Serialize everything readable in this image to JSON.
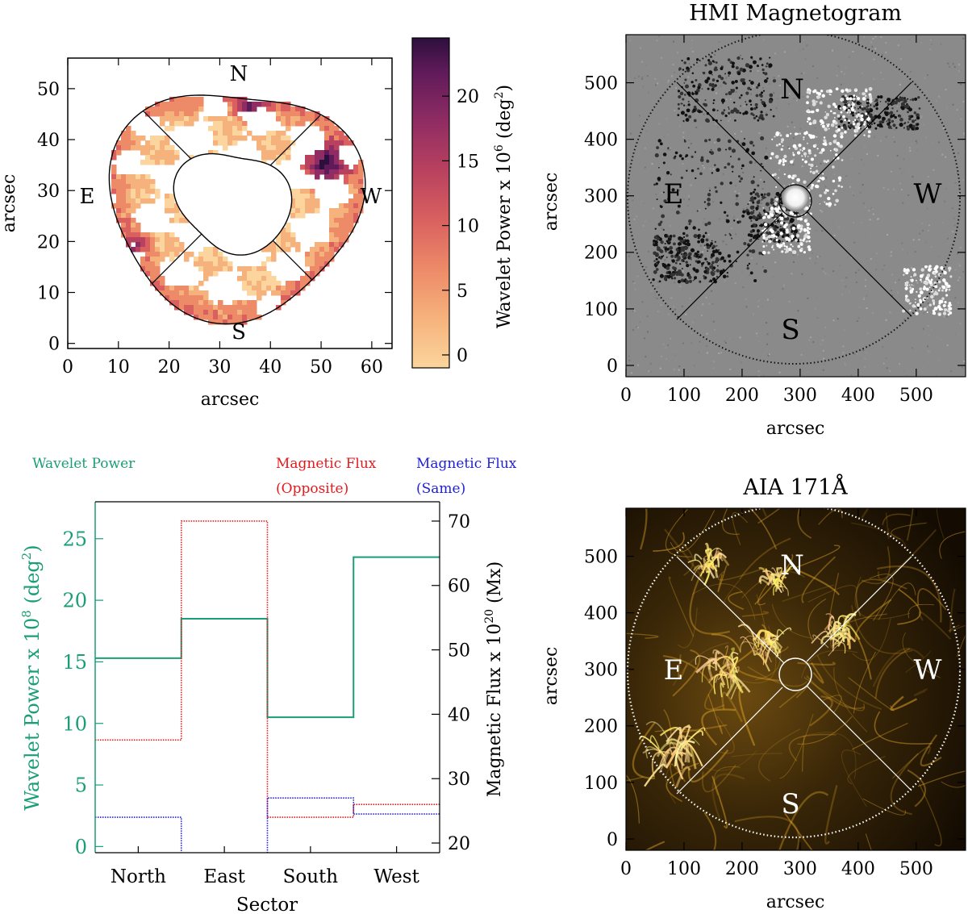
{
  "chart_data": [
    {
      "id": "wavelet_map",
      "type": "heatmap",
      "xlabel": "arcsec",
      "ylabel": "arcsec",
      "xlim": [
        0,
        64
      ],
      "ylim": [
        -1,
        56
      ],
      "xticks": [
        0,
        10,
        20,
        30,
        40,
        50,
        60
      ],
      "yticks": [
        0,
        10,
        20,
        30,
        40,
        50
      ],
      "sector_labels": [
        "N",
        "E",
        "W",
        "S"
      ],
      "colorbar": {
        "label_prefix": "Wavelet Power x 10",
        "label_exp": "6",
        "label_unit_pre": "(deg",
        "label_unit_exp": "2",
        "label_unit_post": ")",
        "range": [
          -1,
          24.5
        ],
        "ticks": [
          0,
          5,
          10,
          15,
          20
        ],
        "colors": [
          "#fbd59d",
          "#f6b27c",
          "#ed8a68",
          "#d9605f",
          "#b8415f",
          "#8f2c63",
          "#5e1a59",
          "#2d0f3d"
        ]
      }
    },
    {
      "id": "hmi_magnetogram",
      "type": "heatmap",
      "title": "HMI Magnetogram",
      "xlabel": "arcsec",
      "ylabel": "arcsec",
      "xlim": [
        0,
        585
      ],
      "ylim": [
        -20,
        585
      ],
      "xticks": [
        0,
        100,
        200,
        300,
        400,
        500
      ],
      "yticks": [
        0,
        100,
        200,
        300,
        400,
        500
      ],
      "sector_labels": [
        "N",
        "E",
        "W",
        "S"
      ]
    },
    {
      "id": "sector_histogram",
      "type": "line",
      "title": "",
      "xlabel": "Sector",
      "categories": [
        "North",
        "East",
        "South",
        "West"
      ],
      "legend": {
        "wavelet": "Wavelet Power",
        "opposite_line1": "Magnetic Flux",
        "opposite_line2": "(Opposite)",
        "same_line1": "Magnetic Flux",
        "same_line2": "(Same)"
      },
      "left_axis": {
        "label_prefix": "Wavelet Power x 10",
        "label_exp": "8",
        "label_unit_pre": "(deg",
        "label_unit_exp": "2",
        "label_unit_post": ")",
        "range": [
          -0.5,
          28
        ],
        "ticks": [
          0,
          5,
          10,
          15,
          20,
          25
        ]
      },
      "right_axis": {
        "label_prefix": "Magnetic Flux x 10",
        "label_exp": "20",
        "label_unit": "(Mx)",
        "range": [
          18.5,
          73
        ],
        "ticks": [
          20,
          30,
          40,
          50,
          60,
          70
        ]
      },
      "series": [
        {
          "name": "Wavelet Power",
          "axis": "left",
          "color": "#1a9e77",
          "style": "solid",
          "values": [
            15.3,
            18.5,
            10.5,
            23.5
          ]
        },
        {
          "name": "Magnetic Flux (Opposite)",
          "axis": "right",
          "color": "#e31a1c",
          "style": "dotted",
          "values": [
            36,
            70,
            24,
            26
          ]
        },
        {
          "name": "Magnetic Flux (Same)",
          "axis": "right",
          "color": "#1f1fd6",
          "style": "dotted",
          "values": [
            24,
            null,
            27,
            24.5
          ]
        }
      ]
    },
    {
      "id": "aia_171",
      "type": "heatmap",
      "title": "AIA 171Å",
      "xlabel": "arcsec",
      "ylabel": "arcsec",
      "xlim": [
        0,
        585
      ],
      "ylim": [
        -20,
        585
      ],
      "xticks": [
        0,
        100,
        200,
        300,
        400,
        500
      ],
      "yticks": [
        0,
        100,
        200,
        300,
        400,
        500
      ],
      "sector_labels": [
        "N",
        "E",
        "W",
        "S"
      ]
    }
  ]
}
